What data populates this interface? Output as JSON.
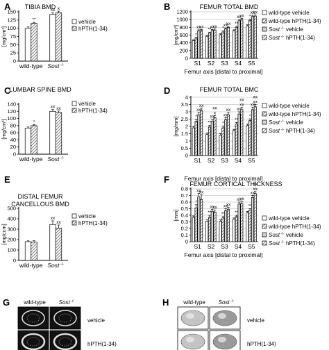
{
  "legend_labels_2": [
    "vehicle",
    "hPTH(1-34)"
  ],
  "legend_labels_4": [
    "wild-type vehicle",
    "wild-type hPTH(1-34)",
    "Sost -/- vehicle",
    "Sost -/- hPTH(1-34)"
  ],
  "images": {
    "G": {
      "label": "G",
      "col_labels": [
        "wild-type",
        "Sost -/-"
      ],
      "row_labels": [
        "vehicle",
        "hPTH(1-34)"
      ]
    },
    "H": {
      "label": "H",
      "col_labels": [
        "wild-type",
        "Sost -/-"
      ],
      "row_labels": [
        "vehicle",
        "hPTH(1-34)"
      ]
    }
  },
  "chart_data": [
    {
      "id": "A",
      "type": "bar",
      "title": "TIBIA BMD",
      "ylabel": "[mg/cm³]",
      "ylim": [
        0,
        150
      ],
      "yticks": [
        0,
        25,
        50,
        75,
        100,
        125,
        150
      ],
      "categories": [
        "wild-type",
        "Sost -/-"
      ],
      "series": [
        {
          "name": "vehicle",
          "values": [
            100,
            142
          ],
          "err": [
            4,
            6
          ]
        },
        {
          "name": "hPTH(1-34)",
          "values": [
            115,
            147
          ],
          "err": [
            3,
            5
          ]
        }
      ],
      "sig": [
        [
          "",
          "**"
        ],
        [
          "xx",
          "x"
        ]
      ]
    },
    {
      "id": "C",
      "type": "bar",
      "title": "LUMBAR SPINE BMD",
      "ylabel": "[mg/cm³]",
      "ylim": [
        0,
        140
      ],
      "yticks": [
        0,
        20,
        40,
        60,
        80,
        100,
        120,
        140
      ],
      "categories": [
        "wild-type",
        "Sost -/-"
      ],
      "series": [
        {
          "name": "vehicle",
          "values": [
            73,
            120
          ],
          "err": [
            3,
            5
          ]
        },
        {
          "name": "hPTH(1-34)",
          "values": [
            80,
            117
          ],
          "err": [
            3,
            4
          ]
        }
      ],
      "sig": [
        [
          "",
          "*"
        ],
        [
          "xx",
          "xx"
        ]
      ]
    },
    {
      "id": "E",
      "type": "bar",
      "title": "DISTAL FEMUR CANCELLOUS BMD",
      "title_lines": [
        "DISTAL FEMUR",
        "CANCELLOUS BMD"
      ],
      "ylabel": "[mg/ccm]",
      "ylim": [
        0,
        500
      ],
      "yticks": [
        0,
        100,
        200,
        300,
        400,
        500
      ],
      "categories": [
        "wild-type",
        "Sost -/-"
      ],
      "series": [
        {
          "name": "vehicle",
          "values": [
            180,
            345
          ],
          "err": [
            8,
            35
          ]
        },
        {
          "name": "hPTH(1-34)",
          "values": [
            177,
            310
          ],
          "err": [
            12,
            30
          ]
        }
      ],
      "sig": [
        [
          "",
          ""
        ],
        [
          "xx",
          "xx"
        ]
      ]
    },
    {
      "id": "B",
      "type": "bar",
      "title": "FEMUR TOTAL BMD",
      "ylabel": "[mg/cm³]",
      "xlabel": "Femur axis [distal to proximal]",
      "ylim": [
        0,
        1200
      ],
      "yticks": [
        0,
        200,
        400,
        600,
        800,
        1000,
        1200
      ],
      "categories": [
        "S1",
        "S2",
        "S3",
        "S4",
        "S5"
      ],
      "series": [
        {
          "name": "wild-type vehicle",
          "values": [
            460,
            570,
            610,
            710,
            840
          ],
          "err": [
            20,
            20,
            25,
            25,
            25
          ]
        },
        {
          "name": "wild-type hPTH(1-34)",
          "values": [
            520,
            650,
            680,
            800,
            980
          ],
          "err": [
            20,
            25,
            25,
            25,
            30
          ]
        },
        {
          "name": "Sost -/- vehicle",
          "values": [
            710,
            720,
            760,
            970,
            1080
          ],
          "err": [
            25,
            25,
            25,
            30,
            30
          ]
        },
        {
          "name": "Sost -/- hPTH(1-34)",
          "values": [
            720,
            730,
            800,
            1000,
            1090
          ],
          "err": [
            25,
            25,
            25,
            30,
            30
          ]
        }
      ],
      "sig": [
        [
          "",
          "*",
          "xx",
          "xx"
        ],
        [
          "",
          "**",
          "xx",
          "xx"
        ],
        [
          "",
          "*",
          "xx",
          "xx"
        ],
        [
          "",
          "**",
          "xx",
          "xx"
        ],
        [
          "",
          "*",
          "xx",
          "xx"
        ]
      ]
    },
    {
      "id": "D",
      "type": "bar",
      "title": "FEMUR TOTAL BMC",
      "ylabel": "[mg/mm]",
      "xlabel": "Femur axis [distal to proximal]",
      "ylim": [
        0,
        4
      ],
      "yticks": [
        0,
        0.5,
        1,
        1.5,
        2,
        2.5,
        3,
        3.5,
        4
      ],
      "categories": [
        "S1",
        "S2",
        "S3",
        "S4",
        "S5"
      ],
      "series": [
        {
          "name": "wild-type vehicle",
          "values": [
            1.9,
            1.45,
            1.4,
            1.7,
            2.05
          ],
          "err": [
            0.1,
            0.1,
            0.1,
            0.1,
            0.1
          ]
        },
        {
          "name": "wild-type hPTH(1-34)",
          "values": [
            2.35,
            1.95,
            1.9,
            2.15,
            2.4
          ],
          "err": [
            0.12,
            0.12,
            0.12,
            0.12,
            0.12
          ]
        },
        {
          "name": "Sost -/- vehicle",
          "values": [
            2.8,
            2.35,
            2.45,
            2.85,
            3.15
          ],
          "err": [
            0.15,
            0.15,
            0.15,
            0.15,
            0.15
          ]
        },
        {
          "name": "Sost -/- hPTH(1-34)",
          "values": [
            3.1,
            2.6,
            2.8,
            3.15,
            3.35
          ],
          "err": [
            0.15,
            0.15,
            0.15,
            0.15,
            0.15
          ]
        }
      ],
      "sig": [
        [
          "",
          "*",
          "xx",
          "xx"
        ],
        [
          "",
          "**",
          "xx",
          "xx x"
        ],
        [
          "",
          "*",
          "xx",
          "xx"
        ],
        [
          "",
          "**",
          "xx",
          "xx xx"
        ],
        [
          "",
          "*",
          "xx",
          "xx xx"
        ]
      ]
    },
    {
      "id": "F",
      "type": "bar",
      "title": "FEMUR CORTICAL THICKNESS",
      "ylabel": "[mm]",
      "xlabel": "Femur axis [distal to proximal]",
      "ylim": [
        0,
        0.8
      ],
      "yticks": [
        0,
        0.1,
        0.2,
        0.3,
        0.4,
        0.5,
        0.6,
        0.7,
        0.8
      ],
      "categories": [
        "S1",
        "S2",
        "S3",
        "S4",
        "S5"
      ],
      "series": [
        {
          "name": "wild-type vehicle",
          "values": [
            0.37,
            0.31,
            0.31,
            0.34,
            0.44
          ],
          "err": [
            0.02,
            0.02,
            0.02,
            0.02,
            0.02
          ]
        },
        {
          "name": "wild-type hPTH(1-34)",
          "values": [
            0.51,
            0.37,
            0.36,
            0.38,
            0.48
          ],
          "err": [
            0.05,
            0.03,
            0.02,
            0.02,
            0.02
          ]
        },
        {
          "name": "Sost -/- vehicle",
          "values": [
            0.68,
            0.46,
            0.47,
            0.57,
            0.67
          ],
          "err": [
            0.05,
            0.03,
            0.03,
            0.03,
            0.03
          ]
        },
        {
          "name": "Sost -/- hPTH(1-34)",
          "values": [
            0.64,
            0.45,
            0.49,
            0.58,
            0.73
          ],
          "err": [
            0.07,
            0.03,
            0.03,
            0.03,
            0.03
          ]
        }
      ],
      "sig": [
        [
          "",
          "*",
          "xx",
          "xx"
        ],
        [
          "",
          "**",
          "xx",
          "xx"
        ],
        [
          "",
          "**",
          "xx",
          "xx"
        ],
        [
          "",
          "**",
          "xx",
          "xx"
        ],
        [
          "",
          "**",
          "xx",
          "xx xx"
        ]
      ]
    }
  ]
}
